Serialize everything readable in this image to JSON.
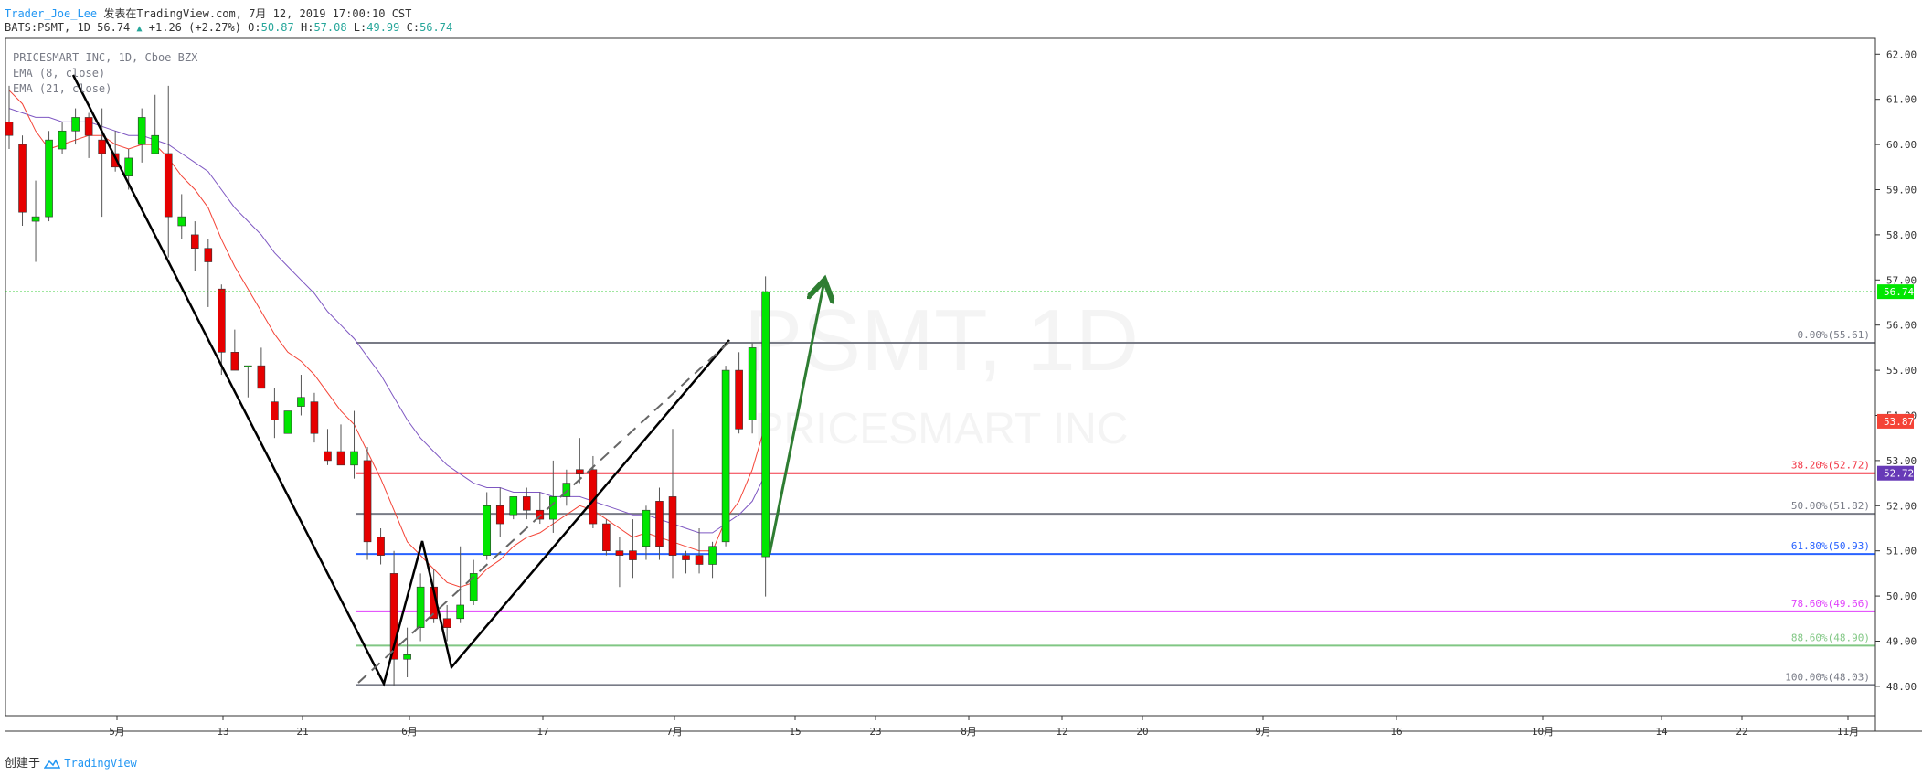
{
  "header": {
    "author": "Trader_Joe_Lee",
    "published": "发表在TradingView.com, 7月 12, 2019 17:00:10 CST",
    "symbol": "BATS:PSMT, 1D",
    "last": "56.74",
    "change": "+1.26 (+2.27%)",
    "o_label": "O:",
    "o": "50.87",
    "h_label": "H:",
    "h": "57.08",
    "l_label": "L:",
    "l": "49.99",
    "c_label": "C:",
    "c": "56.74"
  },
  "legend": {
    "line1": "PRICESMART INC, 1D, Cboe BZX",
    "line2": "EMA (8, close)",
    "line3": "EMA (21, close)"
  },
  "watermark": {
    "ticker": "PSMT, 1D",
    "name": "PRICESMART INC"
  },
  "footer": {
    "created": "创建于",
    "brand": "TradingView"
  },
  "colors": {
    "up": "#00e600",
    "down": "#e60000",
    "ema8": "#f44336",
    "ema21": "#7e57c2"
  },
  "chart_data": {
    "type": "candlestick",
    "y_ticks": [
      "62.00",
      "61.00",
      "60.00",
      "59.00",
      "58.00",
      "57.00",
      "56.00",
      "55.00",
      "54.00",
      "53.00",
      "52.00",
      "51.00",
      "50.00",
      "49.00",
      "48.00"
    ],
    "ylim": [
      47.35,
      62.35
    ],
    "x_ticks": [
      "5月",
      "13",
      "21",
      "6月",
      "17",
      "7月",
      "15",
      "23",
      "8月",
      "12",
      "20",
      "9月",
      "16",
      "10月",
      "14",
      "22",
      "11月"
    ],
    "price_labels": [
      {
        "value": 56.74,
        "text": "56.74",
        "color": "#00e600"
      },
      {
        "value": 53.87,
        "text": "53.87",
        "color": "#f44336"
      },
      {
        "value": 52.72,
        "text": "52.72",
        "color": "#673ab7"
      }
    ],
    "fib_levels": [
      {
        "value": 55.61,
        "label": "0.00%(55.61)",
        "color": "#787b86"
      },
      {
        "value": 52.72,
        "label": "38.20%(52.72)",
        "color": "#f23645"
      },
      {
        "value": 51.82,
        "label": "50.00%(51.82)",
        "color": "#787b86"
      },
      {
        "value": 50.93,
        "label": "61.80%(50.93)",
        "color": "#2962ff"
      },
      {
        "value": 49.66,
        "label": "78.60%(49.66)",
        "color": "#e040fb"
      },
      {
        "value": 48.9,
        "label": "88.60%(48.90)",
        "color": "#81c784"
      },
      {
        "value": 48.03,
        "label": "100.00%(48.03)",
        "color": "#787b86"
      }
    ],
    "candles": [
      {
        "o": 60.5,
        "h": 61.3,
        "l": 59.9,
        "c": 60.2
      },
      {
        "o": 60.0,
        "h": 60.2,
        "l": 58.2,
        "c": 58.5
      },
      {
        "o": 58.3,
        "h": 59.2,
        "l": 57.4,
        "c": 58.4
      },
      {
        "o": 58.4,
        "h": 60.3,
        "l": 58.3,
        "c": 60.1
      },
      {
        "o": 59.9,
        "h": 60.5,
        "l": 59.8,
        "c": 60.3
      },
      {
        "o": 60.3,
        "h": 60.8,
        "l": 60.0,
        "c": 60.6
      },
      {
        "o": 60.6,
        "h": 60.7,
        "l": 59.7,
        "c": 60.2
      },
      {
        "o": 60.1,
        "h": 60.8,
        "l": 58.4,
        "c": 59.8
      },
      {
        "o": 59.8,
        "h": 60.3,
        "l": 59.4,
        "c": 59.5
      },
      {
        "o": 59.3,
        "h": 59.9,
        "l": 59.0,
        "c": 59.7
      },
      {
        "o": 60.0,
        "h": 60.8,
        "l": 59.6,
        "c": 60.6
      },
      {
        "o": 59.8,
        "h": 61.1,
        "l": 59.8,
        "c": 60.2
      },
      {
        "o": 59.8,
        "h": 61.3,
        "l": 57.5,
        "c": 58.4
      },
      {
        "o": 58.2,
        "h": 58.9,
        "l": 57.9,
        "c": 58.4
      },
      {
        "o": 58.0,
        "h": 58.3,
        "l": 57.2,
        "c": 57.7
      },
      {
        "o": 57.7,
        "h": 57.9,
        "l": 56.4,
        "c": 57.4
      },
      {
        "o": 56.8,
        "h": 56.9,
        "l": 54.9,
        "c": 55.4
      },
      {
        "o": 55.4,
        "h": 55.9,
        "l": 55.0,
        "c": 55.0
      },
      {
        "o": 55.1,
        "h": 55.1,
        "l": 54.4,
        "c": 55.1
      },
      {
        "o": 55.1,
        "h": 55.5,
        "l": 54.6,
        "c": 54.6
      },
      {
        "o": 54.3,
        "h": 54.6,
        "l": 53.5,
        "c": 53.9
      },
      {
        "o": 53.6,
        "h": 54.1,
        "l": 53.6,
        "c": 54.1
      },
      {
        "o": 54.2,
        "h": 54.9,
        "l": 54.0,
        "c": 54.4
      },
      {
        "o": 54.3,
        "h": 54.5,
        "l": 53.4,
        "c": 53.6
      },
      {
        "o": 53.2,
        "h": 53.7,
        "l": 52.9,
        "c": 53.0
      },
      {
        "o": 53.2,
        "h": 53.8,
        "l": 52.9,
        "c": 52.9
      },
      {
        "o": 52.9,
        "h": 54.1,
        "l": 52.6,
        "c": 53.2
      },
      {
        "o": 53.0,
        "h": 53.3,
        "l": 50.8,
        "c": 51.2
      },
      {
        "o": 51.3,
        "h": 51.5,
        "l": 50.7,
        "c": 50.9
      },
      {
        "o": 50.5,
        "h": 51.0,
        "l": 48.0,
        "c": 48.6
      },
      {
        "o": 48.6,
        "h": 49.3,
        "l": 48.2,
        "c": 48.7
      },
      {
        "o": 49.3,
        "h": 50.5,
        "l": 49.0,
        "c": 50.2
      },
      {
        "o": 50.2,
        "h": 50.6,
        "l": 49.4,
        "c": 49.5
      },
      {
        "o": 49.5,
        "h": 49.8,
        "l": 49.0,
        "c": 49.3
      },
      {
        "o": 49.5,
        "h": 51.1,
        "l": 49.4,
        "c": 49.8
      },
      {
        "o": 49.9,
        "h": 50.8,
        "l": 49.8,
        "c": 50.5
      },
      {
        "o": 50.9,
        "h": 52.3,
        "l": 50.8,
        "c": 52.0
      },
      {
        "o": 52.0,
        "h": 52.4,
        "l": 51.3,
        "c": 51.6
      },
      {
        "o": 51.8,
        "h": 52.2,
        "l": 51.7,
        "c": 52.2
      },
      {
        "o": 52.2,
        "h": 52.4,
        "l": 51.7,
        "c": 51.9
      },
      {
        "o": 51.9,
        "h": 52.3,
        "l": 51.6,
        "c": 51.7
      },
      {
        "o": 51.7,
        "h": 53.0,
        "l": 51.4,
        "c": 52.2
      },
      {
        "o": 52.2,
        "h": 52.8,
        "l": 52.0,
        "c": 52.5
      },
      {
        "o": 52.8,
        "h": 53.5,
        "l": 52.5,
        "c": 52.7
      },
      {
        "o": 52.8,
        "h": 53.1,
        "l": 51.5,
        "c": 51.6
      },
      {
        "o": 51.6,
        "h": 51.7,
        "l": 50.9,
        "c": 51.0
      },
      {
        "o": 51.0,
        "h": 51.3,
        "l": 50.2,
        "c": 50.9
      },
      {
        "o": 51.0,
        "h": 51.7,
        "l": 50.4,
        "c": 50.8
      },
      {
        "o": 51.1,
        "h": 52.0,
        "l": 50.8,
        "c": 51.9
      },
      {
        "o": 52.1,
        "h": 52.4,
        "l": 50.8,
        "c": 51.1
      },
      {
        "o": 52.2,
        "h": 53.7,
        "l": 50.4,
        "c": 50.9
      },
      {
        "o": 50.9,
        "h": 51.0,
        "l": 50.5,
        "c": 50.8
      },
      {
        "o": 50.9,
        "h": 51.5,
        "l": 50.5,
        "c": 50.7
      },
      {
        "o": 50.7,
        "h": 51.2,
        "l": 50.4,
        "c": 51.1
      },
      {
        "o": 51.2,
        "h": 55.1,
        "l": 51.1,
        "c": 55.0
      },
      {
        "o": 55.0,
        "h": 55.4,
        "l": 53.6,
        "c": 53.7
      },
      {
        "o": 53.9,
        "h": 55.6,
        "l": 53.6,
        "c": 55.5
      },
      {
        "o": 50.87,
        "h": 57.08,
        "l": 49.99,
        "c": 56.74
      }
    ],
    "ema8": [
      61.2,
      60.9,
      60.3,
      59.9,
      60.0,
      60.1,
      60.2,
      60.2,
      60.0,
      59.9,
      60.0,
      60.0,
      59.7,
      59.3,
      59.0,
      58.6,
      57.9,
      57.3,
      56.8,
      56.3,
      55.8,
      55.4,
      55.2,
      54.9,
      54.5,
      54.1,
      53.8,
      53.2,
      52.6,
      51.9,
      51.2,
      50.9,
      50.6,
      50.3,
      50.2,
      50.3,
      50.6,
      50.8,
      51.1,
      51.3,
      51.4,
      51.6,
      51.8,
      52.0,
      51.9,
      51.7,
      51.5,
      51.3,
      51.4,
      51.3,
      51.2,
      51.1,
      51.0,
      51.0,
      51.7,
      52.1,
      52.8,
      53.8
    ],
    "ema21": [
      60.8,
      60.7,
      60.6,
      60.6,
      60.5,
      60.5,
      60.5,
      60.4,
      60.3,
      60.2,
      60.2,
      60.1,
      60.0,
      59.8,
      59.6,
      59.4,
      59.0,
      58.6,
      58.3,
      58.0,
      57.6,
      57.3,
      57.0,
      56.7,
      56.3,
      56.0,
      55.7,
      55.3,
      54.9,
      54.4,
      53.9,
      53.5,
      53.2,
      52.9,
      52.7,
      52.5,
      52.4,
      52.4,
      52.3,
      52.3,
      52.3,
      52.2,
      52.2,
      52.2,
      52.1,
      52.0,
      51.9,
      51.8,
      51.8,
      51.7,
      51.6,
      51.5,
      51.4,
      51.4,
      51.6,
      51.8,
      52.1,
      52.7
    ],
    "annotations": "hand-drawn trend lines, dashed channel and green projection arrow"
  }
}
